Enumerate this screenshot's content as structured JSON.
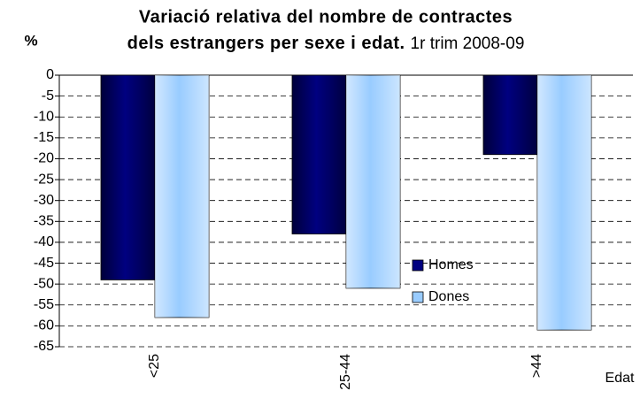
{
  "chart_data": {
    "type": "bar",
    "title": [
      "Variació relativa del nombre de contractes",
      "dels estrangers per sexe i edat."
    ],
    "subtitle": "1r trim 2008-09",
    "y_label": "%",
    "x_label": "Edat",
    "categories": [
      "<25",
      "25-44",
      ">44"
    ],
    "series": [
      {
        "name": "Homes",
        "color": "#000080",
        "values": [
          -49,
          -38,
          -19
        ]
      },
      {
        "name": "Dones",
        "color": "#99ccff",
        "values": [
          -58,
          -51,
          -61
        ]
      }
    ],
    "ylim": [
      -65,
      0
    ],
    "yticks": [
      0,
      -5,
      -10,
      -15,
      -20,
      -25,
      -30,
      -35,
      -40,
      -45,
      -50,
      -55,
      -60,
      -65
    ],
    "grid": true,
    "legend": "lower-right"
  }
}
